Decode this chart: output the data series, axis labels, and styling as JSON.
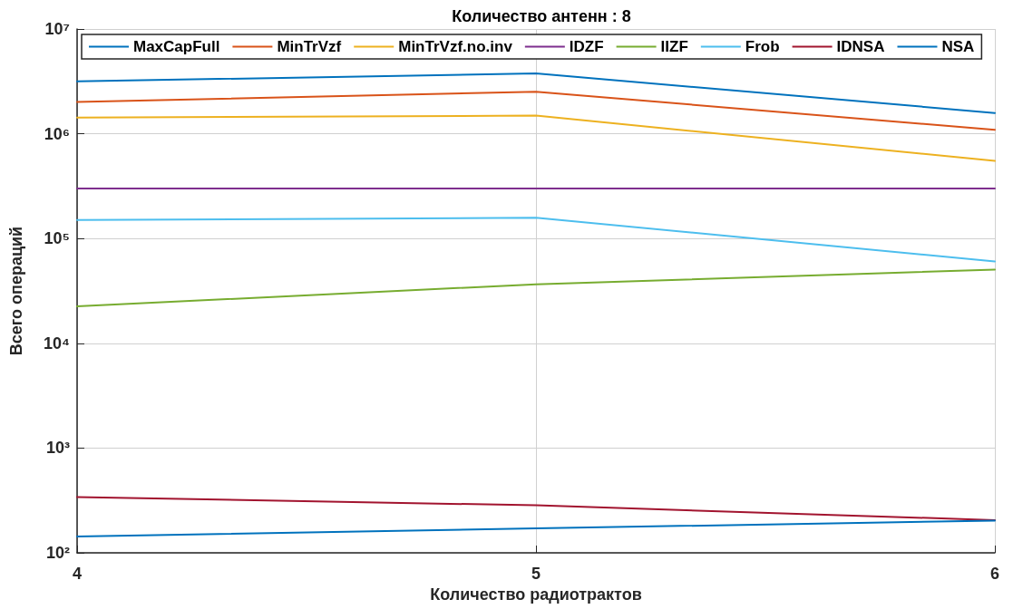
{
  "chart_data": {
    "type": "line",
    "title": "Количество антенн : 8",
    "xlabel": "Количество радиотрактов",
    "ylabel": "Всего операций",
    "x": [
      4,
      5,
      6
    ],
    "series": [
      {
        "name": "MaxCapFull",
        "color": "#0072bd",
        "values": [
          3160000,
          3770000,
          1580000
        ]
      },
      {
        "name": "MinTrVzf",
        "color": "#d95319",
        "values": [
          2010000,
          2520000,
          1090000
        ]
      },
      {
        "name": "MinTrVzf.no.inv",
        "color": "#edb120",
        "values": [
          1430000,
          1490000,
          550000
        ]
      },
      {
        "name": "IDZF",
        "color": "#7e2f8e",
        "values": [
          300000,
          300000,
          300000
        ]
      },
      {
        "name": "IIZF",
        "color": "#77ac30",
        "values": [
          22500,
          36600,
          50500
        ]
      },
      {
        "name": "Frob",
        "color": "#4dbeee",
        "values": [
          150000,
          158000,
          60500
        ]
      },
      {
        "name": "IDNSA",
        "color": "#a2142f",
        "values": [
          340,
          284,
          205
        ]
      },
      {
        "name": "NSA",
        "color": "#0072bd",
        "values": [
          143,
          171,
          203
        ]
      }
    ],
    "xlim": [
      4,
      6
    ],
    "xticks": [
      4,
      5,
      6
    ],
    "ylim": [
      100,
      10000000
    ],
    "yticks": [
      {
        "value": 100,
        "label": "10²"
      },
      {
        "value": 1000,
        "label": "10³"
      },
      {
        "value": 10000,
        "label": "10⁴"
      },
      {
        "value": 100000,
        "label": "10⁵"
      },
      {
        "value": 1000000,
        "label": "10⁶"
      },
      {
        "value": 10000000,
        "label": "10⁷"
      }
    ],
    "log": "y",
    "grid": true,
    "legend": "top",
    "marker": "none",
    "line_style": "solid"
  }
}
